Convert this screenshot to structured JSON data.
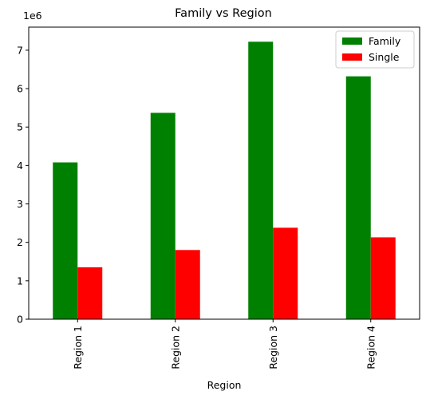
{
  "chart_data": {
    "type": "bar",
    "title": "Family vs Region",
    "xlabel": "Region",
    "ylabel": "",
    "y_multiplier_label": "1e6",
    "categories": [
      "Region 1",
      "Region 2",
      "Region 3",
      "Region 4"
    ],
    "series": [
      {
        "name": "Family",
        "color": "#008000",
        "values": [
          4080000,
          5370000,
          7220000,
          6320000
        ]
      },
      {
        "name": "Single",
        "color": "#ff0000",
        "values": [
          1350000,
          1800000,
          2380000,
          2130000
        ]
      }
    ],
    "ylim": [
      0,
      7600000
    ],
    "yticks": [
      0,
      1000000,
      2000000,
      3000000,
      4000000,
      5000000,
      6000000,
      7000000
    ],
    "ytick_labels": [
      "0",
      "1",
      "2",
      "3",
      "4",
      "5",
      "6",
      "7"
    ],
    "grid": false,
    "legend_position": "top-right"
  }
}
